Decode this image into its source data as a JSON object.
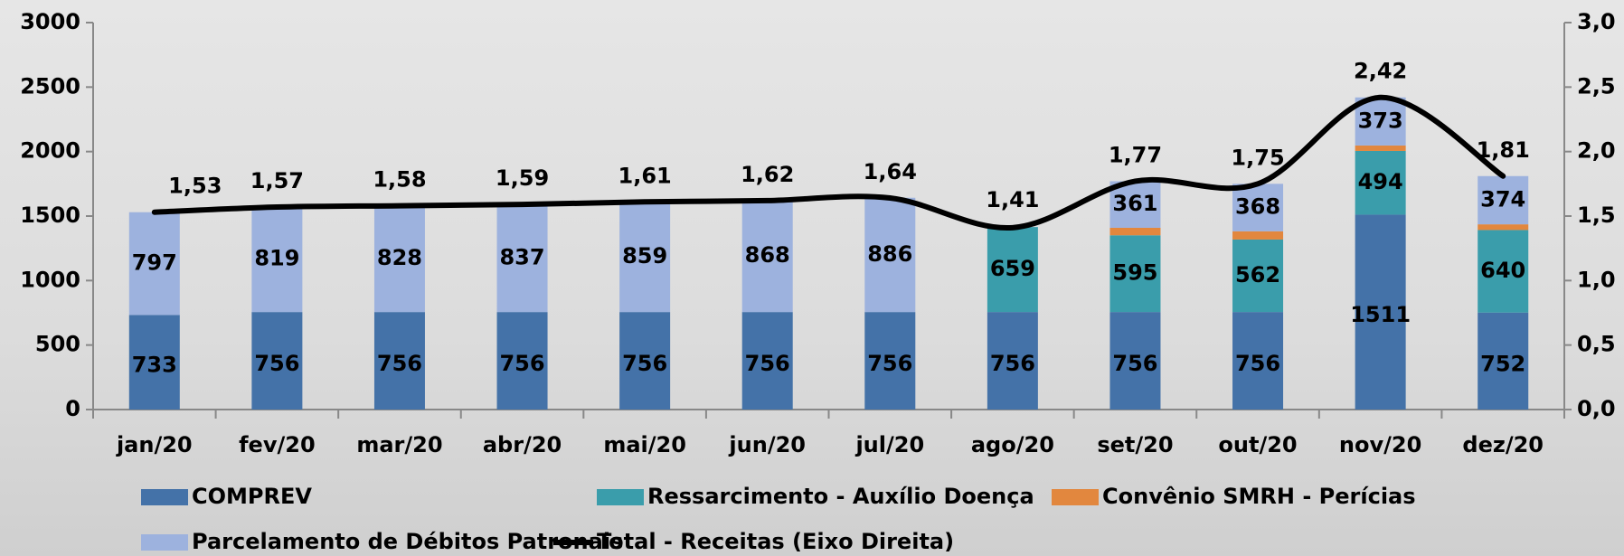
{
  "chart_data": {
    "type": "bar",
    "stacked": true,
    "categories": [
      "jan/20",
      "fev/20",
      "mar/20",
      "abr/20",
      "mai/20",
      "jun/20",
      "jul/20",
      "ago/20",
      "set/20",
      "out/20",
      "nov/20",
      "dez/20"
    ],
    "series": [
      {
        "name": "COMPREV",
        "color": "#4472a8",
        "values": [
          733,
          756,
          756,
          756,
          756,
          756,
          756,
          756,
          756,
          756,
          1511,
          752
        ]
      },
      {
        "name": "Ressarcimento - Auxílio Doença",
        "color": "#3a9dab",
        "values": [
          null,
          null,
          null,
          null,
          null,
          null,
          null,
          659,
          595,
          562,
          494,
          640
        ]
      },
      {
        "name": "Convênio SMRH - Perícias",
        "color": "#e2873e",
        "values": [
          null,
          null,
          null,
          null,
          null,
          null,
          null,
          null,
          58,
          64,
          42,
          44
        ]
      },
      {
        "name": "Parcelamento de Débitos Patronais",
        "color": "#9db2de",
        "values": [
          797,
          819,
          828,
          837,
          859,
          868,
          886,
          null,
          361,
          368,
          373,
          374
        ]
      },
      {
        "name": "Total - Receitas (Eixo Direita)",
        "type": "line",
        "axis": "y2",
        "color": "#000000",
        "values": [
          1.53,
          1.57,
          1.58,
          1.59,
          1.61,
          1.62,
          1.64,
          1.41,
          1.77,
          1.75,
          2.42,
          1.81
        ],
        "value_labels": [
          "1,53",
          "1,57",
          "1,58",
          "1,59",
          "1,61",
          "1,62",
          "1,64",
          "1,41",
          "1,77",
          "1,75",
          "2,42",
          "1,81"
        ]
      }
    ],
    "ylim": [
      0,
      3000
    ],
    "yticks": [
      0,
      500,
      1000,
      1500,
      2000,
      2500,
      3000
    ],
    "y2lim": [
      0,
      3
    ],
    "y2ticks": [
      {
        "value": 0,
        "label": "0,0"
      },
      {
        "value": 0.5,
        "label": "0,5"
      },
      {
        "value": 1,
        "label": "1,0"
      },
      {
        "value": 1.5,
        "label": "1,5"
      },
      {
        "value": 2,
        "label": "2,0"
      },
      {
        "value": 2.5,
        "label": "2,5"
      },
      {
        "value": 3,
        "label": "3,0"
      }
    ]
  }
}
